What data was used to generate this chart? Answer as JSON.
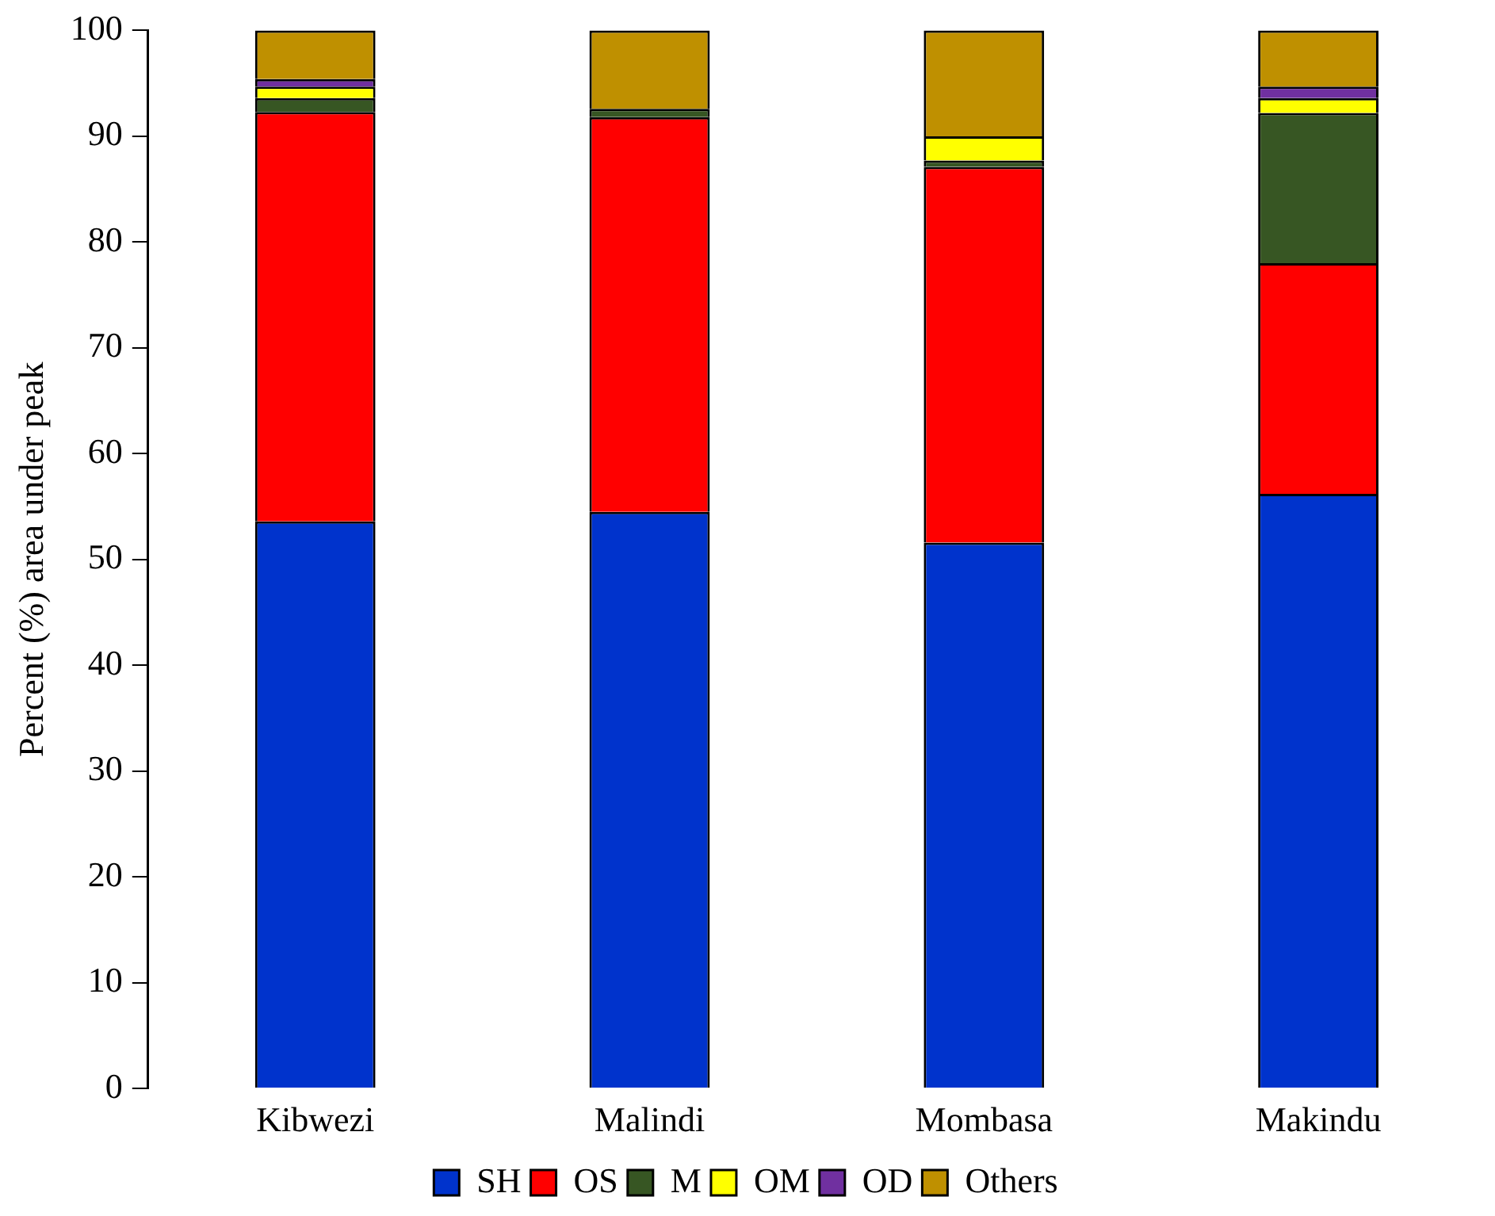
{
  "chart_data": {
    "type": "bar",
    "stacked": true,
    "ylabel": "Percent (%) area under peak",
    "categories": [
      "Kibwezi",
      "Malindi",
      "Mombasa",
      "Makindu"
    ],
    "series": [
      {
        "name": "SH",
        "color": "#0033cc",
        "values": [
          53.6,
          54.5,
          51.6,
          56.2
        ]
      },
      {
        "name": "OS",
        "color": "#ff0000",
        "values": [
          38.7,
          37.3,
          35.5,
          21.8
        ]
      },
      {
        "name": "M",
        "color": "#375623",
        "values": [
          1.3,
          0.8,
          0.6,
          14.2
        ]
      },
      {
        "name": "OM",
        "color": "#ffff00",
        "values": [
          1.1,
          0,
          2.3,
          1.4
        ]
      },
      {
        "name": "OD",
        "color": "#7030a0",
        "values": [
          0.7,
          0,
          0,
          1.1
        ]
      },
      {
        "name": "Others",
        "color": "#bf9000",
        "values": [
          4.6,
          7.4,
          10,
          5.3
        ]
      }
    ],
    "ylim": [
      0,
      100
    ],
    "yticks": [
      0,
      10,
      20,
      30,
      40,
      50,
      60,
      70,
      80,
      90,
      100
    ],
    "grid": false,
    "legend": "bottom"
  }
}
